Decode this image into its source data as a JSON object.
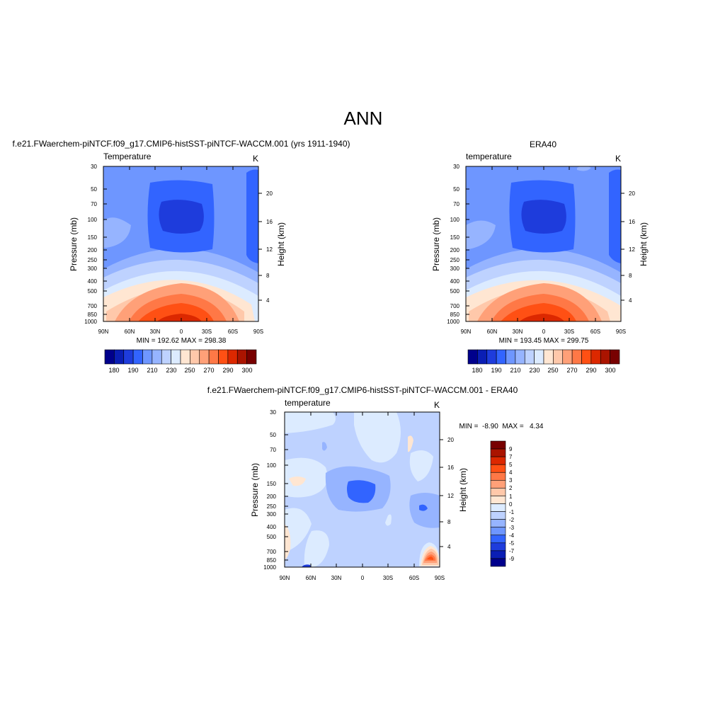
{
  "figure": {
    "title": "ANN"
  },
  "panels": [
    {
      "id": "model",
      "title": "f.e21.FWaerchem-piNTCF.f09_g17.CMIP6-histSST-piNTCF-WACCM.001 (yrs 1911-1940)",
      "left_label": "Temperature",
      "right_label": "K",
      "ylabel": "Pressure (mb)",
      "ylabel_right": "Height (km)",
      "x_ticks": [
        "90N",
        "60N",
        "30N",
        "0",
        "30S",
        "60S",
        "90S"
      ],
      "y_ticks": [
        "30",
        "50",
        "70",
        "100",
        "150",
        "200",
        "250",
        "300",
        "400",
        "500",
        "700",
        "850",
        "1000"
      ],
      "y2_ticks": [
        "20",
        "16",
        "12",
        "8",
        "4"
      ],
      "stats_text": "MIN = 192.62  MAX = 298.38"
    },
    {
      "id": "obs",
      "title": "ERA40",
      "left_label": "temperature",
      "right_label": "K",
      "ylabel": "Pressure (mb)",
      "ylabel_right": "Height (km)",
      "x_ticks": [
        "90N",
        "60N",
        "30N",
        "0",
        "30S",
        "60S",
        "90S"
      ],
      "y_ticks": [
        "30",
        "50",
        "70",
        "100",
        "150",
        "200",
        "250",
        "300",
        "400",
        "500",
        "700",
        "850",
        "1000"
      ],
      "y2_ticks": [
        "20",
        "16",
        "12",
        "8",
        "4"
      ],
      "stats_text": "MIN = 193.45  MAX = 299.75"
    },
    {
      "id": "diff",
      "title": "f.e21.FWaerchem-piNTCF.f09_g17.CMIP6-histSST-piNTCF-WACCM.001 - ERA40",
      "left_label": "temperature",
      "right_label": "K",
      "ylabel": "Pressure (mb)",
      "ylabel_right": "Height (km)",
      "x_ticks": [
        "90N",
        "60N",
        "30N",
        "0",
        "30S",
        "60S",
        "90S"
      ],
      "y_ticks": [
        "30",
        "50",
        "70",
        "100",
        "150",
        "200",
        "250",
        "300",
        "400",
        "500",
        "700",
        "850",
        "1000"
      ],
      "y2_ticks": [
        "20",
        "16",
        "12",
        "8",
        "4"
      ],
      "stats_text": "MIN =  -8.90  MAX =   4.34"
    }
  ],
  "colorbars": {
    "abs": {
      "labels": [
        "180",
        "190",
        "210",
        "230",
        "250",
        "270",
        "290",
        "300"
      ],
      "colors": [
        "#00008c",
        "#0a1eb4",
        "#1e3cdc",
        "#3264ff",
        "#6e96ff",
        "#96b4ff",
        "#bed2ff",
        "#dcebff",
        "#ffe6d2",
        "#ffc8aa",
        "#ffa078",
        "#ff7846",
        "#ff5014",
        "#dc2800",
        "#aa1400",
        "#780000"
      ]
    },
    "diff": {
      "labels": [
        "9",
        "7",
        "5",
        "4",
        "3",
        "2",
        "1",
        "0",
        "-1",
        "-2",
        "-3",
        "-4",
        "-5",
        "-7",
        "-9"
      ],
      "colors": [
        "#780000",
        "#aa1400",
        "#dc2800",
        "#ff5014",
        "#ff7846",
        "#ffa078",
        "#ffc8aa",
        "#ffe6d2",
        "#dcebff",
        "#bed2ff",
        "#96b4ff",
        "#6e96ff",
        "#3264ff",
        "#1e3cdc",
        "#0a1eb4",
        "#00008c"
      ]
    }
  },
  "chart_data": [
    {
      "type": "heatmap",
      "title": "f.e21.FWaerchem-piNTCF.f09_g17.CMIP6-histSST-piNTCF-WACCM.001 (yrs 1911-1940)",
      "variable": "Temperature",
      "units": "K",
      "xlabel": "",
      "ylabel": "Pressure (mb)",
      "y2label": "Height (km)",
      "x_categories": [
        "90N",
        "60N",
        "30N",
        "0",
        "30S",
        "60S",
        "90S"
      ],
      "y_scale": "log",
      "y_range": [
        30,
        1000
      ],
      "levels": [
        180,
        190,
        210,
        230,
        250,
        270,
        290,
        300
      ],
      "min": 192.62,
      "max": 298.38
    },
    {
      "type": "heatmap",
      "title": "ERA40",
      "variable": "temperature",
      "units": "K",
      "xlabel": "",
      "ylabel": "Pressure (mb)",
      "y2label": "Height (km)",
      "x_categories": [
        "90N",
        "60N",
        "30N",
        "0",
        "30S",
        "60S",
        "90S"
      ],
      "y_scale": "log",
      "y_range": [
        30,
        1000
      ],
      "levels": [
        180,
        190,
        210,
        230,
        250,
        270,
        290,
        300
      ],
      "min": 193.45,
      "max": 299.75
    },
    {
      "type": "heatmap",
      "title": "f.e21.FWaerchem-piNTCF.f09_g17.CMIP6-histSST-piNTCF-WACCM.001 - ERA40",
      "variable": "temperature",
      "units": "K",
      "xlabel": "",
      "ylabel": "Pressure (mb)",
      "y2label": "Height (km)",
      "x_categories": [
        "90N",
        "60N",
        "30N",
        "0",
        "30S",
        "60S",
        "90S"
      ],
      "y_scale": "log",
      "y_range": [
        30,
        1000
      ],
      "levels": [
        -9,
        -7,
        -5,
        -4,
        -3,
        -2,
        -1,
        0,
        1,
        2,
        3,
        4,
        5,
        7,
        9
      ],
      "min": -8.9,
      "max": 4.34
    }
  ]
}
